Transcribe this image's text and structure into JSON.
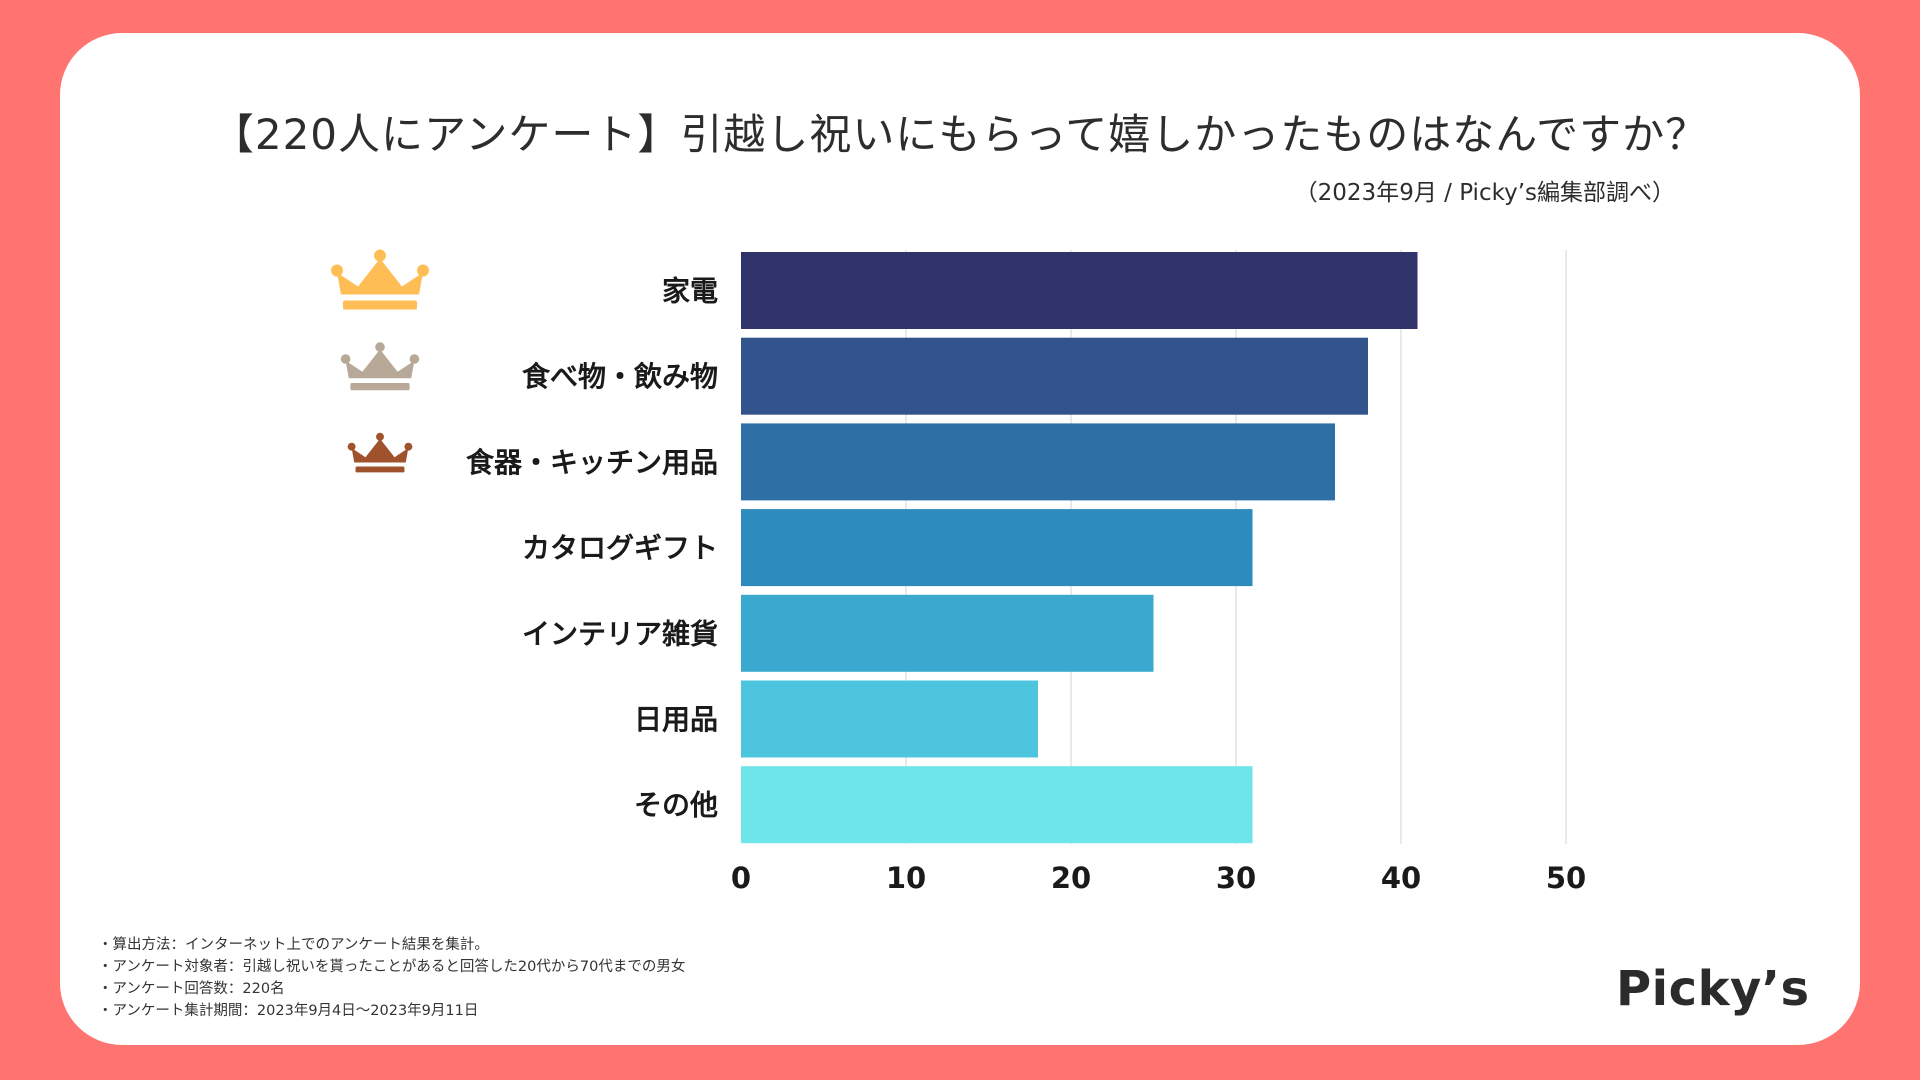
{
  "title": "【220人にアンケート】引越し祝いにもらって嬉しかったものはなんですか？",
  "subtitle": "（2023年9月 / Picky’s編集部調べ）",
  "notes": [
    "・算出方法：インターネット上でのアンケート結果を集計。",
    "・アンケート対象者：引越し祝いを貰ったことがあると回答した20代から70代までの男女",
    "・アンケート回答数：220名",
    "・アンケート集計期間：2023年9月4日〜2023年9月11日"
  ],
  "logo": "Picky’s",
  "colors": {
    "background": "#ff7370",
    "gold": "#ffbe55",
    "silver": "#b8a898",
    "bronze": "#a0522d",
    "bars": [
      "#2f3369",
      "#32538b",
      "#2e6fa5",
      "#2d8bbd",
      "#3aa8cf",
      "#4dc5df",
      "#6ee5e8"
    ]
  },
  "chart_data": {
    "type": "bar",
    "orientation": "horizontal",
    "categories": [
      "家電",
      "食べ物・飲み物",
      "食器・キッチン用品",
      "カタログギフト",
      "インテリア雑貨",
      "日用品",
      "その他"
    ],
    "values": [
      41,
      38,
      36,
      31,
      25,
      18,
      31
    ],
    "ranks": [
      "gold",
      "silver",
      "bronze",
      null,
      null,
      null,
      null
    ],
    "xlim": [
      0,
      50
    ],
    "ticks": [
      0,
      10,
      20,
      30,
      40,
      50
    ],
    "grid": true,
    "xlabel": "",
    "ylabel": ""
  }
}
